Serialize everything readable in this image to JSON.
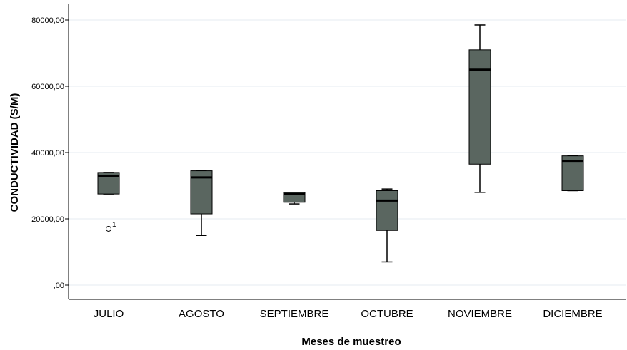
{
  "chart_data": {
    "type": "boxplot",
    "xlabel": "Meses de muestreo",
    "ylabel": "CONDUCTIVIDAD (S/M)",
    "ylim": [
      0,
      83000
    ],
    "yticks": [
      {
        "value": 0,
        "label": ",00"
      },
      {
        "value": 20000,
        "label": "20000,00"
      },
      {
        "value": 40000,
        "label": "40000,00"
      },
      {
        "value": 60000,
        "label": "60000,00"
      },
      {
        "value": 80000,
        "label": "80000,00"
      }
    ],
    "grid": true,
    "box_color": "#5a6660",
    "categories": [
      "JULIO",
      "AGOSTO",
      "SEPTIEMBRE",
      "OCTUBRE",
      "NOVIEMBRE",
      "DICIEMBRE"
    ],
    "boxes": [
      {
        "category": "JULIO",
        "min": 27500,
        "q1": 27500,
        "median": 33000,
        "q3": 34000,
        "max": 34000,
        "outliers": [
          {
            "value": 17000,
            "label": "1"
          }
        ]
      },
      {
        "category": "AGOSTO",
        "min": 15000,
        "q1": 21500,
        "median": 32500,
        "q3": 34500,
        "max": 34500,
        "outliers": []
      },
      {
        "category": "SEPTIEMBRE",
        "min": 24500,
        "q1": 25000,
        "median": 27500,
        "q3": 28000,
        "max": 28000,
        "outliers": []
      },
      {
        "category": "OCTUBRE",
        "min": 7000,
        "q1": 16500,
        "median": 25500,
        "q3": 28500,
        "max": 29000,
        "outliers": []
      },
      {
        "category": "NOVIEMBRE",
        "min": 28000,
        "q1": 36500,
        "median": 65000,
        "q3": 71000,
        "max": 78500,
        "outliers": []
      },
      {
        "category": "DICIEMBRE",
        "min": 28500,
        "q1": 28500,
        "median": 37500,
        "q3": 39000,
        "max": 39000,
        "outliers": []
      }
    ]
  }
}
